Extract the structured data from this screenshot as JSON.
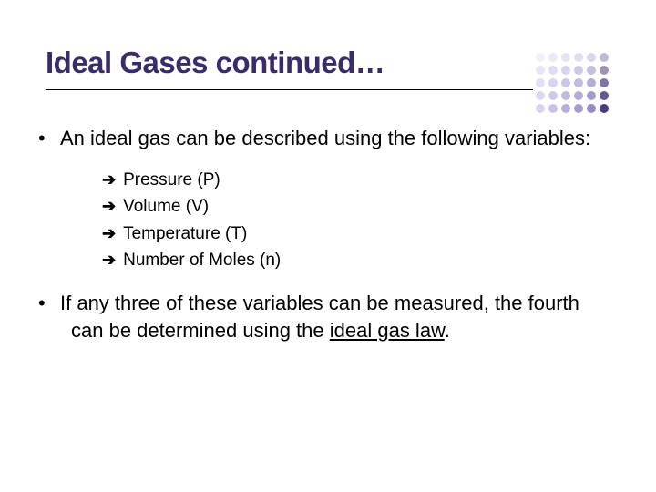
{
  "title": "Ideal Gases continued…",
  "title_color": "#3a2b6b",
  "bullets": {
    "b1": "An ideal gas can be described using the following variables:",
    "b2_pre": "If any three of these variables can be measured, the fourth can be determined using the ",
    "b2_underlined": "ideal gas law",
    "b2_post": "."
  },
  "sub": {
    "s1": "Pressure (P)",
    "s2": "Volume (V)",
    "s3": "Temperature (T)",
    "s4": "Number of Moles (n)"
  },
  "arrow_glyph": "➔",
  "bullet_glyph": "•",
  "dot_grid": {
    "rows": 5,
    "cols": 6,
    "spacing": 14,
    "radius": 5,
    "colors_by_col": [
      "#d9d2ec",
      "#c9c0e3",
      "#b8aed9",
      "#a89ccf",
      "#978ac5",
      "#4a3b7a"
    ],
    "alpha_by_row": [
      0.35,
      0.55,
      0.7,
      0.85,
      1.0
    ]
  }
}
